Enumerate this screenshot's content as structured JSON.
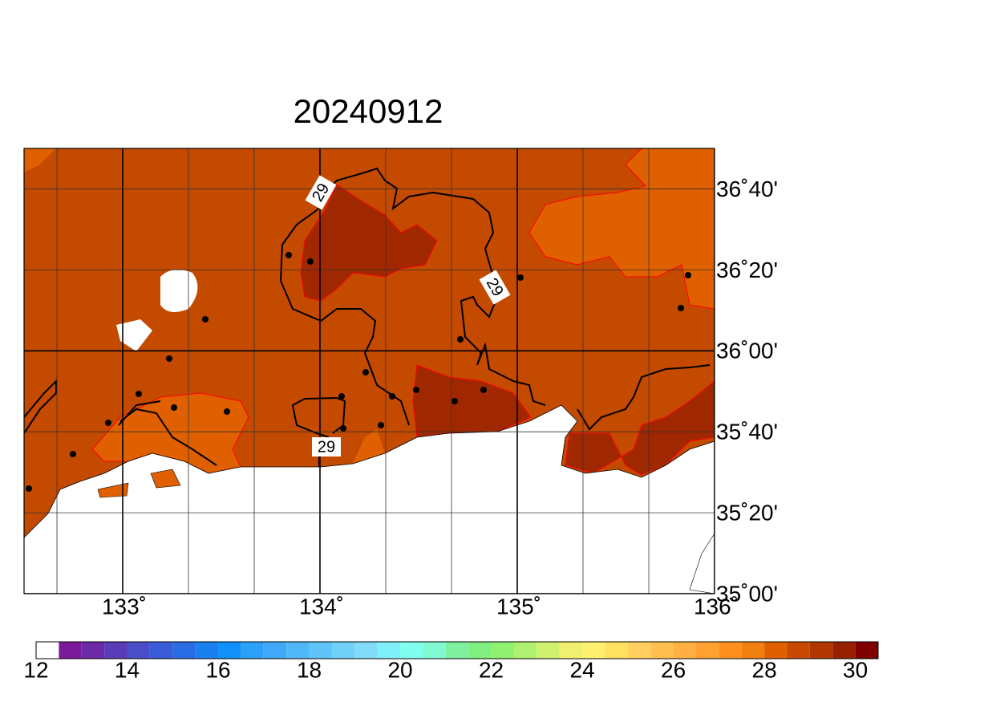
{
  "title": "20240912",
  "map": {
    "xlim": [
      132.5,
      136
    ],
    "ylim": [
      35,
      36.8333
    ],
    "xticks": [
      {
        "value": 133,
        "label": "133˚"
      },
      {
        "value": 134,
        "label": "134˚"
      },
      {
        "value": 135,
        "label": "135˚"
      },
      {
        "value": 136,
        "label": "136˚"
      }
    ],
    "yticks": [
      {
        "value": 35,
        "label": "35˚00'"
      },
      {
        "value": 35.3333,
        "label": "35˚20'"
      },
      {
        "value": 35.6667,
        "label": "35˚40'"
      },
      {
        "value": 36,
        "label": "36˚00'"
      },
      {
        "value": 36.3333,
        "label": "36˚20'"
      },
      {
        "value": 36.6667,
        "label": "36˚40'"
      }
    ],
    "xminor": [
      132.6667,
      133.3333,
      133.6667,
      134.3333,
      134.6667,
      135.3333,
      135.6667
    ],
    "contour_labels": [
      "29",
      "29",
      "29"
    ]
  },
  "colorbar": {
    "levels_start": 12,
    "level_step": 0.5,
    "colors": [
      "#ffffff",
      "#7b1a98",
      "#6b2aa8",
      "#5a3cb8",
      "#4a4cc8",
      "#3a5cd8",
      "#2a6ce4",
      "#1a80f0",
      "#1090f8",
      "#2aa0f8",
      "#40a8f8",
      "#50b8f8",
      "#60c4f8",
      "#70d0f8",
      "#80dcf8",
      "#80f0f8",
      "#80fff0",
      "#80f8d0",
      "#80f0a0",
      "#80f080",
      "#90f070",
      "#b0f070",
      "#d0f070",
      "#f0f070",
      "#fff070",
      "#ffe060",
      "#ffd060",
      "#ffc050",
      "#ffb040",
      "#ffa030",
      "#ff9020",
      "#f08010",
      "#e06000",
      "#c84800",
      "#b03800",
      "#982000",
      "#800000"
    ],
    "ticks": [
      12,
      14,
      16,
      18,
      20,
      22,
      24,
      26,
      28,
      30
    ]
  }
}
